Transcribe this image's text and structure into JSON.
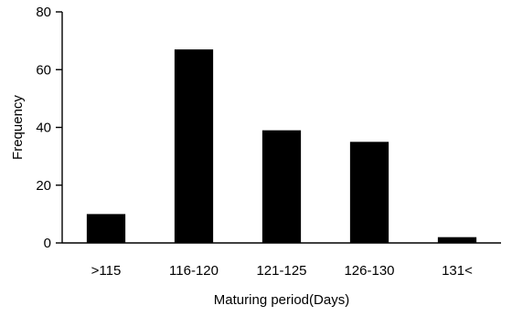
{
  "chart_data": {
    "type": "bar",
    "categories": [
      ">115",
      "116-120",
      "121-125",
      "126-130",
      "131<"
    ],
    "values": [
      10,
      67,
      39,
      35,
      2
    ],
    "title": "",
    "xlabel": "Maturing period(Days)",
    "ylabel": "Frequency",
    "ylim": [
      0,
      80
    ],
    "yticks": [
      0,
      20,
      40,
      60,
      80
    ],
    "grid": false,
    "legend": "none",
    "bar_color": "#000000"
  }
}
